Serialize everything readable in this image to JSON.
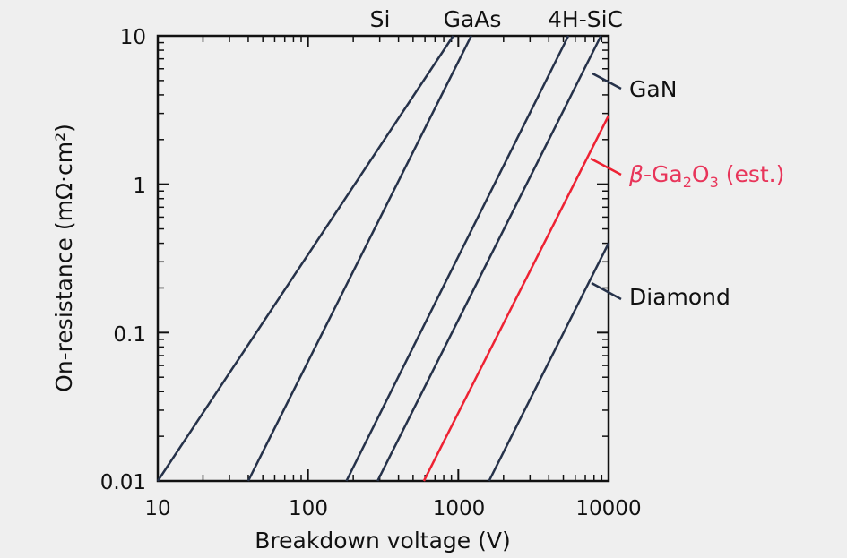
{
  "chart_data": {
    "type": "line",
    "title": "",
    "xlabel": "Breakdown voltage (V)",
    "ylabel": "On-resistance (mΩ·cm²)",
    "xscale": "log",
    "yscale": "log",
    "xlim": [
      10,
      10000
    ],
    "ylim": [
      0.01,
      10
    ],
    "x_tick_labels": [
      "10",
      "100",
      "1000",
      "10000"
    ],
    "y_tick_labels": [
      "0.01",
      "0.1",
      "1",
      "10"
    ],
    "grid": false,
    "colors": {
      "default": "#26324a",
      "highlight": "#ee2233",
      "highlight_label": "#e8355a"
    },
    "series": [
      {
        "name": "Si",
        "color": "#26324a",
        "x": [
          10,
          925
        ],
        "y": [
          0.01,
          10
        ]
      },
      {
        "name": "GaAs",
        "color": "#26324a",
        "x": [
          40,
          1220
        ],
        "y": [
          0.01,
          10
        ]
      },
      {
        "name": "4H-SiC",
        "color": "#26324a",
        "x": [
          180,
          5400
        ],
        "y": [
          0.01,
          10
        ]
      },
      {
        "name": "GaN",
        "color": "#26324a",
        "x": [
          290,
          8900
        ],
        "y": [
          0.01,
          10
        ]
      },
      {
        "name": "β-Ga₂O₃ (est.)",
        "color": "#ee2233",
        "x": [
          590,
          10000
        ],
        "y": [
          0.01,
          2.9
        ]
      },
      {
        "name": "Diamond",
        "color": "#26324a",
        "x": [
          1600,
          10000
        ],
        "y": [
          0.01,
          0.4
        ]
      }
    ],
    "series_labels": {
      "si": "Si",
      "gaas": "GaAs",
      "sic": "4H-SiC",
      "gan": "GaN",
      "ga2o3_beta": "β",
      "ga2o3_rest": "-Ga",
      "ga2o3_sub1": "2",
      "ga2o3_o": "O",
      "ga2o3_sub2": "3",
      "ga2o3_est": " (est.)",
      "diamond": "Diamond"
    }
  }
}
